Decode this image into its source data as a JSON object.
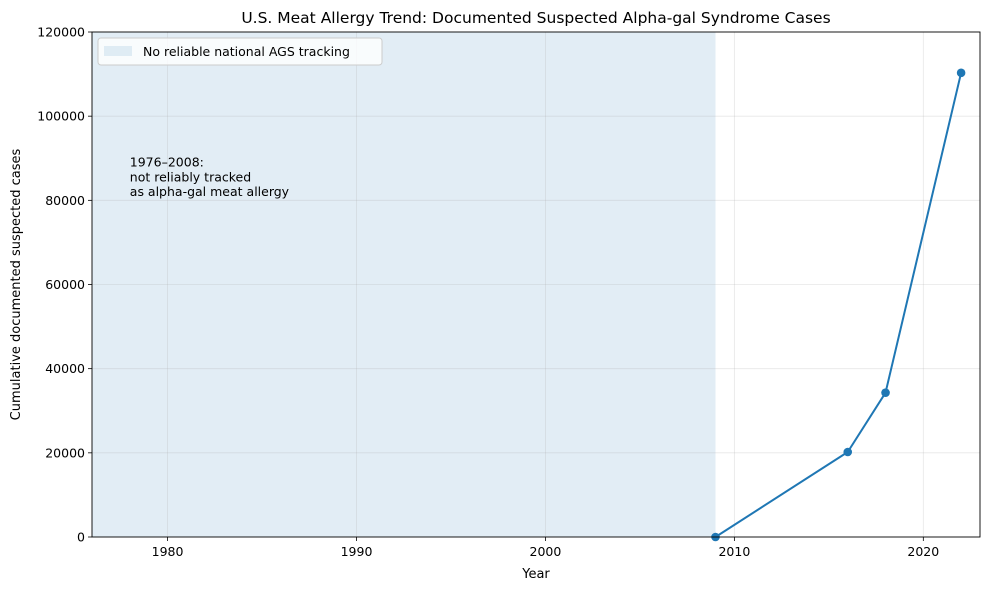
{
  "chart_data": {
    "type": "line",
    "title": "U.S. Meat Allergy Trend: Documented Suspected Alpha-gal Syndrome Cases",
    "xlabel": "Year",
    "ylabel": "Cumulative documented suspected cases",
    "xlim": [
      1976,
      2023
    ],
    "ylim": [
      0,
      120000
    ],
    "xticks": [
      1980,
      1990,
      2000,
      2010,
      2020
    ],
    "yticks": [
      0,
      20000,
      40000,
      60000,
      80000,
      100000,
      120000
    ],
    "grid": true,
    "legend_position": "top-left",
    "series": [
      {
        "x": [
          2009,
          2016,
          2018,
          2022
        ],
        "y": [
          0,
          20200,
          34300,
          110300
        ],
        "color": "#1f77b4"
      }
    ],
    "shaded_region": {
      "x_range": [
        1976,
        2009
      ],
      "label": "No reliable national AGS tracking",
      "color": "#c6dcec"
    },
    "annotation": {
      "x": 1978,
      "y": 88000,
      "lines": [
        "1976–2008:",
        "not reliably tracked",
        "as alpha-gal meat allergy"
      ]
    }
  }
}
